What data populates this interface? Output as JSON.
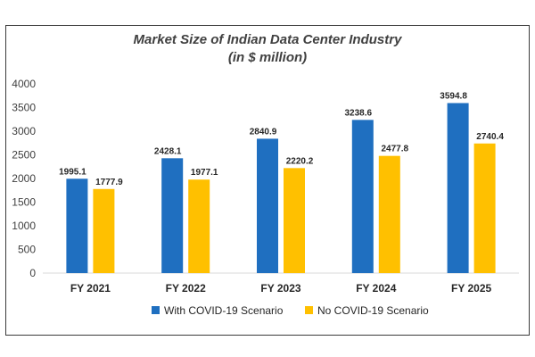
{
  "chart_data": {
    "type": "bar",
    "title_line1": "Market Size of Indian Data Center Industry",
    "title_line2": "(in $ million)",
    "xlabel": "",
    "ylabel": "",
    "categories": [
      "FY 2021",
      "FY 2022",
      "FY 2023",
      "FY 2024",
      "FY 2025"
    ],
    "series": [
      {
        "name": "With COVID-19 Scenario",
        "color": "#1f6fc0",
        "values": [
          1995.1,
          2428.1,
          2840.9,
          3238.6,
          3594.8
        ]
      },
      {
        "name": "No COVID-19 Scenario",
        "color": "#ffc000",
        "values": [
          1777.9,
          1977.1,
          2220.2,
          2477.8,
          2740.4
        ]
      }
    ],
    "ylim": [
      0,
      4000
    ],
    "yticks": [
      0,
      500,
      1000,
      1500,
      2000,
      2500,
      3000,
      3500,
      4000
    ],
    "grid": false,
    "legend_position": "bottom"
  }
}
